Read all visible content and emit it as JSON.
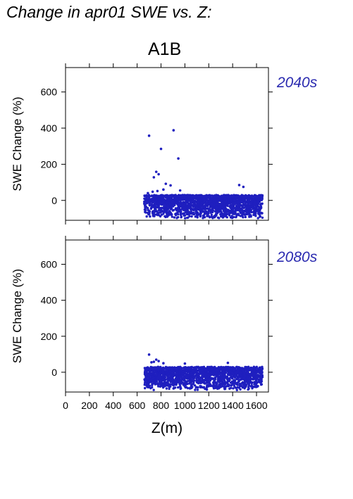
{
  "page": {
    "title": "Change in apr01 SWE vs. Z:",
    "scenario": "A1B"
  },
  "colors": {
    "points": "#1f1fbf",
    "period_label": "#2b2bb0",
    "axis": "#000000"
  },
  "chart_data": [
    {
      "type": "scatter",
      "title": "2040s",
      "ylabel": "SWE Change (%)",
      "xlabel": "",
      "xlim": [
        0,
        1700
      ],
      "ylim": [
        -110,
        735
      ],
      "yticks": [
        0,
        200,
        400,
        600
      ],
      "xticks": [
        0,
        200,
        400,
        600,
        800,
        1000,
        1200,
        1400,
        1600
      ],
      "xtick_labels_shown": false,
      "grid": false,
      "cloud": {
        "x_range": [
          660,
          1650
        ],
        "y_range": [
          -100,
          30
        ],
        "approx_points": 1800
      },
      "points": [
        [
          700,
          358
        ],
        [
          905,
          388
        ],
        [
          800,
          285
        ],
        [
          945,
          232
        ],
        [
          760,
          158
        ],
        [
          780,
          145
        ],
        [
          740,
          128
        ],
        [
          840,
          92
        ],
        [
          880,
          83
        ],
        [
          960,
          55
        ],
        [
          1455,
          85
        ],
        [
          1490,
          75
        ],
        [
          820,
          60
        ],
        [
          770,
          52
        ],
        [
          730,
          48
        ],
        [
          690,
          40
        ]
      ]
    },
    {
      "type": "scatter",
      "title": "2080s",
      "ylabel": "SWE Change (%)",
      "xlabel": "Z(m)",
      "xlim": [
        0,
        1700
      ],
      "ylim": [
        -110,
        735
      ],
      "yticks": [
        0,
        200,
        400,
        600
      ],
      "xticks": [
        0,
        200,
        400,
        600,
        800,
        1000,
        1200,
        1400,
        1600
      ],
      "xtick_labels": [
        "0",
        "200",
        "400",
        "600",
        "800",
        "1000",
        "1200",
        "1400",
        "1600"
      ],
      "xtick_labels_shown": true,
      "grid": false,
      "cloud": {
        "x_range": [
          660,
          1650
        ],
        "y_range": [
          -100,
          30
        ],
        "approx_points": 1800
      },
      "points": [
        [
          700,
          98
        ],
        [
          760,
          70
        ],
        [
          780,
          62
        ],
        [
          740,
          58
        ],
        [
          720,
          55
        ],
        [
          820,
          50
        ],
        [
          1360,
          52
        ],
        [
          1000,
          48
        ]
      ]
    }
  ]
}
